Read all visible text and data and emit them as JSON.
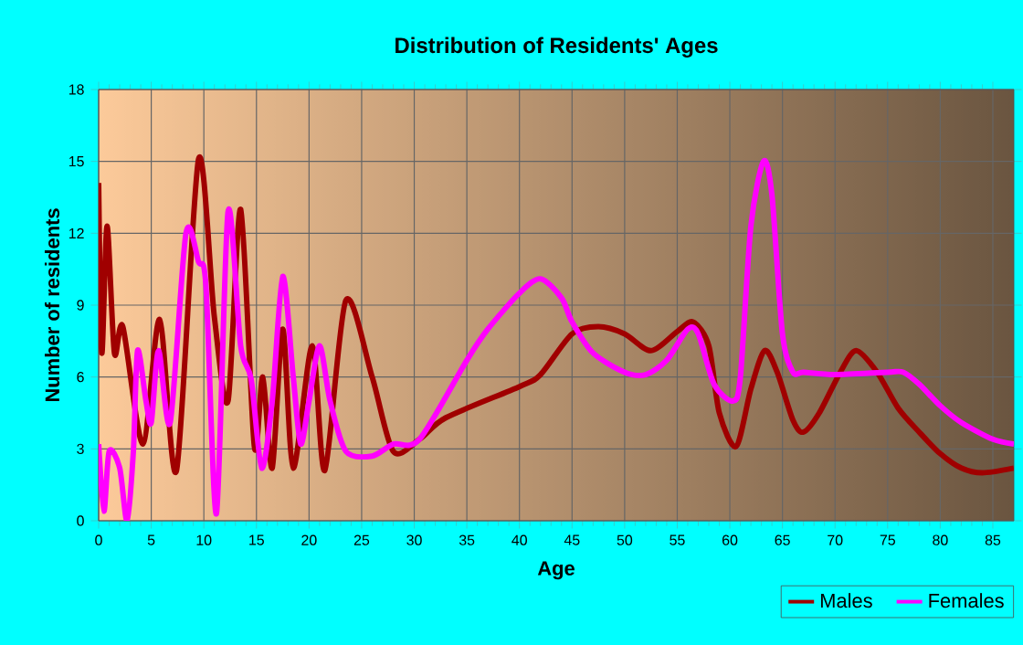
{
  "chart_data": {
    "type": "line",
    "title": "Distribution of Residents' Ages",
    "xlabel": "Age",
    "ylabel": "Number of residents",
    "xlim": [
      0,
      87
    ],
    "xticks": [
      0,
      5,
      10,
      15,
      20,
      25,
      30,
      35,
      40,
      45,
      50,
      55,
      60,
      65,
      70,
      75,
      80,
      85
    ],
    "ylim": [
      0,
      18
    ],
    "yticks": [
      0,
      3,
      6,
      9,
      12,
      15,
      18
    ],
    "grid": true,
    "legend": "bottom right",
    "series": [
      {
        "name": "Males",
        "color": "#a00000",
        "x": [
          0,
          0.3,
          0.8,
          1.5,
          2.3,
          4.2,
          5.8,
          7.4,
          9.5,
          11,
          12.3,
          13.5,
          14.8,
          15.6,
          16.5,
          17.5,
          18.5,
          20.3,
          21.5,
          23.5,
          26,
          28,
          30.5,
          33,
          40,
          42,
          45,
          47.5,
          50,
          52.5,
          55,
          56.5,
          58,
          59,
          60.6,
          62,
          63.3,
          64.5,
          66,
          67,
          68.5,
          70.5,
          72,
          74,
          76,
          78,
          80,
          82,
          84,
          87
        ],
        "values": [
          14.1,
          7.0,
          12.3,
          7.0,
          8.1,
          3.2,
          8.4,
          2.1,
          15.1,
          8.5,
          5.0,
          13.0,
          3.1,
          6.0,
          2.2,
          8.0,
          2.2,
          7.3,
          2.1,
          9.2,
          6.0,
          2.9,
          3.4,
          4.3,
          5.6,
          6.1,
          7.8,
          8.1,
          7.8,
          7.1,
          7.9,
          8.3,
          7.3,
          4.5,
          3.1,
          5.5,
          7.1,
          6.2,
          4.2,
          3.7,
          4.5,
          6.2,
          7.1,
          6.2,
          4.7,
          3.7,
          2.8,
          2.2,
          2.0,
          2.2
        ]
      },
      {
        "name": "Females",
        "color": "#ff00ff",
        "x": [
          0,
          0.5,
          1,
          2,
          2.7,
          3.3,
          3.7,
          4.5,
          5,
          5.7,
          6.8,
          8.3,
          9.5,
          10.2,
          11.2,
          12.3,
          13.5,
          14.5,
          15.5,
          16.5,
          17.5,
          18.5,
          19.2,
          20,
          21,
          22,
          23.5,
          26,
          28,
          30.5,
          35,
          37,
          40,
          42,
          44,
          45,
          47,
          50,
          52,
          54,
          56,
          57,
          58.5,
          60.3,
          61,
          62,
          63.2,
          64,
          65,
          66,
          67,
          70,
          75,
          76.5,
          78,
          80,
          82,
          85,
          87
        ],
        "values": [
          3.2,
          0.4,
          2.9,
          2.2,
          0,
          2.9,
          7.1,
          5.0,
          4.1,
          7.1,
          4.1,
          12.0,
          10.8,
          9.8,
          0.3,
          12.9,
          7.3,
          5.9,
          2.2,
          5.0,
          10.2,
          6.0,
          3.2,
          5.0,
          7.3,
          5.0,
          2.9,
          2.7,
          3.2,
          3.4,
          6.7,
          8.0,
          9.5,
          10.1,
          9.3,
          8.3,
          7.0,
          6.2,
          6.1,
          6.7,
          8.0,
          7.8,
          5.7,
          5.0,
          6.0,
          12.3,
          15.0,
          13.6,
          7.8,
          6.2,
          6.2,
          6.1,
          6.2,
          6.2,
          5.7,
          4.8,
          4.1,
          3.4,
          3.2
        ]
      }
    ]
  }
}
